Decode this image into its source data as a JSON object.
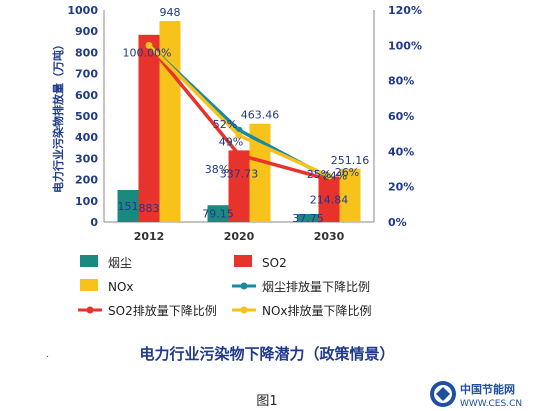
{
  "chart_data": {
    "type": "bar",
    "categories": [
      "2012",
      "2020",
      "2030"
    ],
    "ylabel": "电力行业污染物排放量（万吨）",
    "ylim": [
      0,
      1000
    ],
    "yticks": [
      0,
      100,
      200,
      300,
      400,
      500,
      600,
      700,
      800,
      900,
      1000
    ],
    "y2lim": [
      0,
      120
    ],
    "y2ticks": [
      "0%",
      "20%",
      "40%",
      "60%",
      "80%",
      "100%",
      "120%"
    ],
    "series": [
      {
        "name": "烟尘",
        "kind": "bar",
        "color": "#1a8a80",
        "values": [
          151,
          79.15,
          37.75
        ],
        "labels": [
          "151",
          "79.15",
          "37.75"
        ]
      },
      {
        "name": "SO2",
        "kind": "bar",
        "color": "#e8322c",
        "values": [
          883,
          337.73,
          214.84
        ],
        "labels": [
          "883",
          "337.73",
          "214.84"
        ]
      },
      {
        "name": "NOx",
        "kind": "bar",
        "color": "#f7c21a",
        "values": [
          948,
          463.46,
          251.16
        ],
        "labels": [
          "948",
          "463.46",
          "251.16"
        ]
      },
      {
        "name": "烟尘排放量下降比例",
        "kind": "line",
        "axis": "right",
        "color": "#1a8a9c",
        "values": [
          100,
          52,
          25
        ],
        "labels": [
          "",
          "52%",
          "25%"
        ]
      },
      {
        "name": "SO2排放量下降比例",
        "kind": "line",
        "axis": "right",
        "color": "#e8322c",
        "values": [
          100,
          38,
          24
        ],
        "labels": [
          "100.00%",
          "38%",
          "24%"
        ]
      },
      {
        "name": "NOx排放量下降比例",
        "kind": "line",
        "axis": "right",
        "color": "#f7c21a",
        "values": [
          100,
          49,
          26
        ],
        "labels": [
          "",
          "49%",
          "26%"
        ]
      }
    ],
    "legend_position": "bottom",
    "grid": false
  },
  "subtitle": "电力行业污染物下降潜力（政策情景）",
  "figure_label": "图1",
  "logo": {
    "name": "中国节能网",
    "url": "WWW.CES.CN"
  },
  "colors": {
    "axis_text": "#1f3a8a",
    "label_text": "#1f3a8a"
  }
}
